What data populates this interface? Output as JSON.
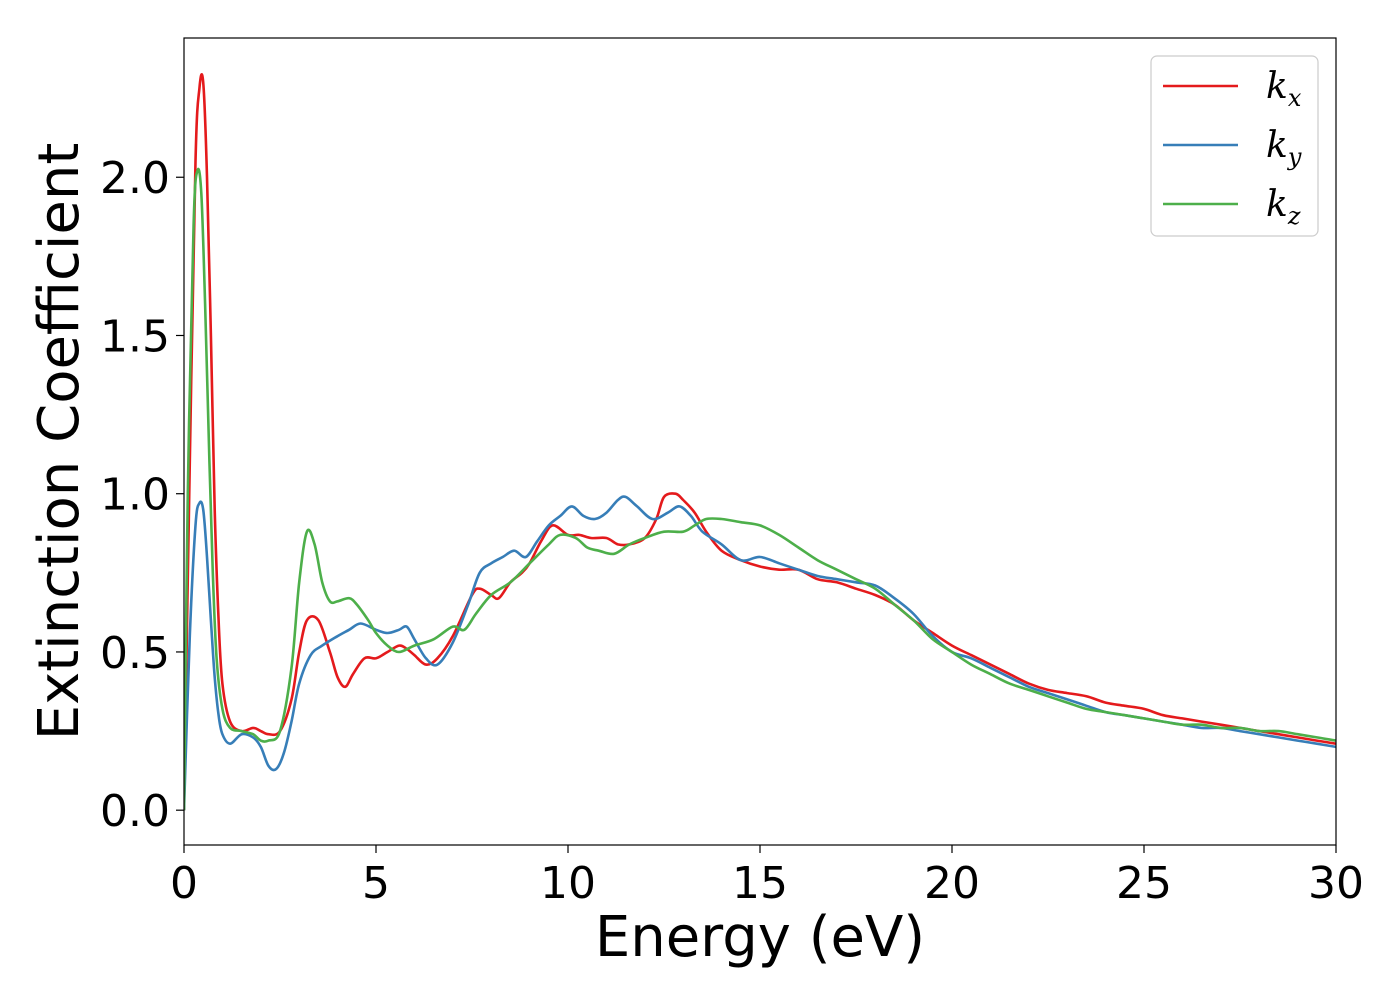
{
  "chart_data": {
    "type": "line",
    "xlabel": "Energy (eV)",
    "ylabel": "Extinction Coefficient",
    "xlim": [
      0,
      30
    ],
    "ylim": [
      -0.11,
      2.44
    ],
    "xticks": [
      0,
      5,
      10,
      15,
      20,
      25,
      30
    ],
    "yticks": [
      0.0,
      0.5,
      1.0,
      1.5,
      2.0
    ],
    "xtick_labels": [
      "0",
      "5",
      "10",
      "15",
      "20",
      "25",
      "30"
    ],
    "ytick_labels": [
      "0.0",
      "0.5",
      "1.0",
      "1.5",
      "2.0"
    ],
    "grid": false,
    "legend_position": "top-right",
    "series": [
      {
        "base": "k",
        "sub": "x",
        "color": "#e41a1c",
        "x": [
          0,
          0.15,
          0.3,
          0.4,
          0.5,
          0.6,
          0.7,
          0.8,
          0.9,
          1.0,
          1.2,
          1.5,
          1.8,
          2.0,
          2.2,
          2.5,
          2.8,
          3.0,
          3.2,
          3.5,
          3.8,
          4.0,
          4.2,
          4.4,
          4.7,
          5.0,
          5.3,
          5.6,
          5.8,
          6.0,
          6.3,
          6.6,
          7.0,
          7.5,
          7.7,
          8.0,
          8.2,
          8.5,
          8.8,
          9.0,
          9.3,
          9.6,
          10.0,
          10.3,
          10.6,
          11.0,
          11.3,
          11.6,
          12.0,
          12.3,
          12.5,
          12.8,
          13.0,
          13.3,
          13.6,
          14.0,
          14.5,
          15.0,
          15.5,
          16.0,
          16.5,
          17.0,
          17.5,
          18.0,
          18.5,
          19.0,
          19.5,
          20.0,
          20.5,
          21.0,
          21.5,
          22.0,
          22.5,
          23.0,
          23.5,
          24.0,
          24.5,
          25.0,
          25.5,
          26.0,
          26.5,
          27.0,
          27.5,
          28.0,
          28.5,
          29.0,
          29.5,
          30.0
        ],
        "y": [
          0.0,
          1.1,
          2.05,
          2.28,
          2.3,
          2.0,
          1.5,
          0.95,
          0.6,
          0.4,
          0.28,
          0.25,
          0.26,
          0.25,
          0.24,
          0.25,
          0.35,
          0.5,
          0.6,
          0.6,
          0.5,
          0.42,
          0.39,
          0.43,
          0.48,
          0.48,
          0.5,
          0.52,
          0.51,
          0.49,
          0.46,
          0.48,
          0.55,
          0.68,
          0.7,
          0.68,
          0.67,
          0.72,
          0.75,
          0.78,
          0.85,
          0.9,
          0.87,
          0.87,
          0.86,
          0.86,
          0.84,
          0.84,
          0.86,
          0.92,
          0.99,
          1.0,
          0.98,
          0.94,
          0.88,
          0.82,
          0.79,
          0.77,
          0.76,
          0.76,
          0.73,
          0.72,
          0.7,
          0.68,
          0.65,
          0.6,
          0.56,
          0.52,
          0.49,
          0.46,
          0.43,
          0.4,
          0.38,
          0.37,
          0.36,
          0.34,
          0.33,
          0.32,
          0.3,
          0.29,
          0.28,
          0.27,
          0.26,
          0.25,
          0.24,
          0.23,
          0.22,
          0.21
        ]
      },
      {
        "base": "k",
        "sub": "y",
        "color": "#377eb8",
        "x": [
          0,
          0.15,
          0.3,
          0.4,
          0.5,
          0.6,
          0.7,
          0.8,
          0.9,
          1.0,
          1.2,
          1.5,
          1.8,
          2.0,
          2.2,
          2.4,
          2.6,
          2.8,
          3.0,
          3.3,
          3.6,
          4.0,
          4.3,
          4.6,
          5.0,
          5.3,
          5.6,
          5.8,
          6.0,
          6.3,
          6.6,
          7.0,
          7.4,
          7.7,
          8.0,
          8.3,
          8.6,
          8.9,
          9.2,
          9.5,
          9.8,
          10.1,
          10.4,
          10.7,
          11.0,
          11.3,
          11.5,
          11.8,
          12.2,
          12.6,
          12.9,
          13.2,
          13.5,
          14.0,
          14.5,
          15.0,
          15.5,
          16.0,
          16.5,
          17.0,
          17.5,
          18.0,
          18.5,
          19.0,
          19.5,
          20.0,
          20.5,
          21.0,
          21.5,
          22.0,
          22.5,
          23.0,
          23.5,
          24.0,
          24.5,
          25.0,
          25.5,
          26.0,
          26.5,
          27.0,
          27.5,
          28.0,
          28.5,
          29.0,
          29.5,
          30.0
        ],
        "y": [
          0.0,
          0.55,
          0.9,
          0.97,
          0.95,
          0.8,
          0.6,
          0.42,
          0.3,
          0.24,
          0.21,
          0.24,
          0.23,
          0.2,
          0.14,
          0.13,
          0.18,
          0.28,
          0.4,
          0.49,
          0.52,
          0.55,
          0.57,
          0.59,
          0.57,
          0.56,
          0.57,
          0.58,
          0.54,
          0.48,
          0.46,
          0.53,
          0.65,
          0.75,
          0.78,
          0.8,
          0.82,
          0.8,
          0.85,
          0.9,
          0.93,
          0.96,
          0.93,
          0.92,
          0.94,
          0.98,
          0.99,
          0.96,
          0.92,
          0.94,
          0.96,
          0.93,
          0.88,
          0.84,
          0.79,
          0.8,
          0.78,
          0.76,
          0.74,
          0.73,
          0.72,
          0.71,
          0.67,
          0.62,
          0.55,
          0.5,
          0.48,
          0.45,
          0.42,
          0.39,
          0.37,
          0.35,
          0.33,
          0.31,
          0.3,
          0.29,
          0.28,
          0.27,
          0.26,
          0.26,
          0.25,
          0.24,
          0.23,
          0.22,
          0.21,
          0.2
        ]
      },
      {
        "base": "k",
        "sub": "z",
        "color": "#4daf4a",
        "x": [
          0,
          0.1,
          0.25,
          0.35,
          0.45,
          0.55,
          0.65,
          0.75,
          0.85,
          1.0,
          1.2,
          1.5,
          1.8,
          2.0,
          2.2,
          2.5,
          2.8,
          3.0,
          3.2,
          3.4,
          3.6,
          3.8,
          4.0,
          4.3,
          4.5,
          4.8,
          5.0,
          5.3,
          5.6,
          6.0,
          6.5,
          7.0,
          7.3,
          7.6,
          8.0,
          8.5,
          9.0,
          9.5,
          9.8,
          10.2,
          10.5,
          10.8,
          11.2,
          11.6,
          12.0,
          12.5,
          13.0,
          13.3,
          13.6,
          14.0,
          14.5,
          15.0,
          15.5,
          16.0,
          16.5,
          17.0,
          17.5,
          18.0,
          18.5,
          19.0,
          19.5,
          20.0,
          20.5,
          21.0,
          21.5,
          22.0,
          22.5,
          23.0,
          23.5,
          24.0,
          24.5,
          25.0,
          25.5,
          26.0,
          26.5,
          27.0,
          27.5,
          28.0,
          28.5,
          29.0,
          29.5,
          30.0
        ],
        "y": [
          0.0,
          1.0,
          1.85,
          2.02,
          1.95,
          1.6,
          1.15,
          0.75,
          0.48,
          0.32,
          0.26,
          0.25,
          0.24,
          0.22,
          0.22,
          0.25,
          0.45,
          0.72,
          0.88,
          0.84,
          0.72,
          0.66,
          0.66,
          0.67,
          0.65,
          0.6,
          0.56,
          0.52,
          0.5,
          0.52,
          0.54,
          0.58,
          0.57,
          0.62,
          0.68,
          0.72,
          0.78,
          0.84,
          0.87,
          0.86,
          0.83,
          0.82,
          0.81,
          0.84,
          0.86,
          0.88,
          0.88,
          0.9,
          0.92,
          0.92,
          0.91,
          0.9,
          0.87,
          0.83,
          0.79,
          0.76,
          0.73,
          0.7,
          0.65,
          0.6,
          0.54,
          0.5,
          0.46,
          0.43,
          0.4,
          0.38,
          0.36,
          0.34,
          0.32,
          0.31,
          0.3,
          0.29,
          0.28,
          0.27,
          0.27,
          0.26,
          0.26,
          0.25,
          0.25,
          0.24,
          0.23,
          0.22
        ]
      }
    ]
  }
}
